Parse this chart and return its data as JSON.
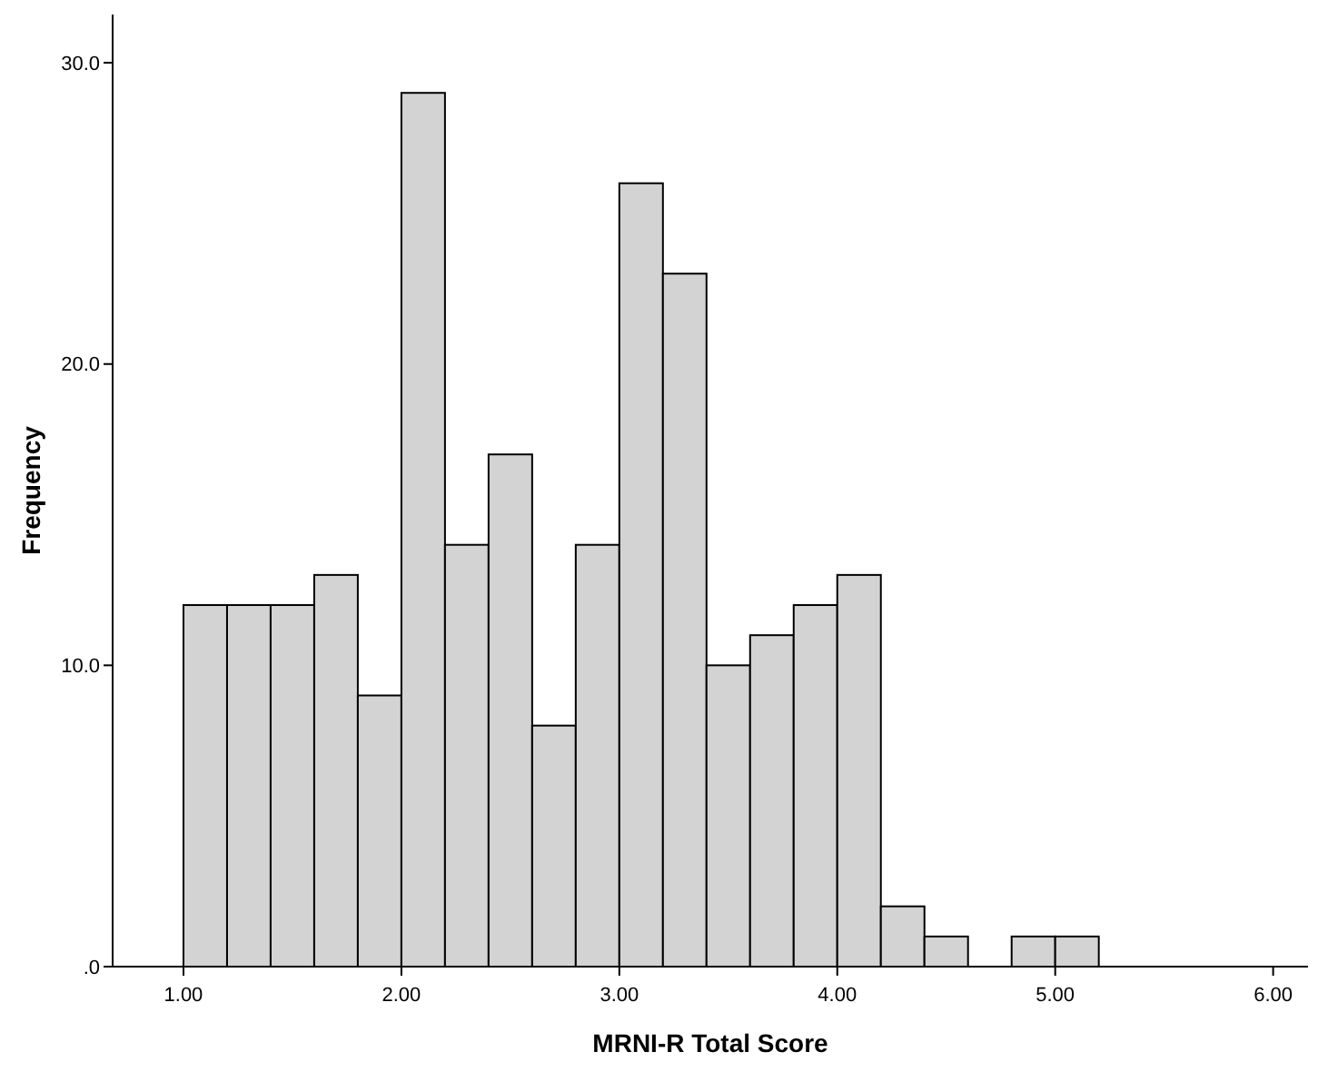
{
  "chart_data": {
    "type": "histogram",
    "xlabel": "MRNI-R Total Score",
    "ylabel": "Frequency",
    "bins": [
      1.0,
      1.2,
      1.4,
      1.6,
      1.8,
      2.0,
      2.2,
      2.4,
      2.6,
      2.8,
      3.0,
      3.2,
      3.4,
      3.6,
      3.8,
      4.0,
      4.2,
      4.4,
      4.6,
      4.8,
      5.0,
      5.2
    ],
    "values": [
      12,
      12,
      12,
      13,
      9,
      29,
      14,
      17,
      8,
      14,
      26,
      23,
      10,
      11,
      12,
      13,
      2,
      1,
      0,
      1,
      1
    ],
    "color": "#d3d3d3",
    "xlim": [
      0.675,
      6.16
    ],
    "ylim": [
      0,
      31.6
    ],
    "xticks": [
      {
        "value": 1,
        "label": "1.00"
      },
      {
        "value": 2,
        "label": "2.00"
      },
      {
        "value": 3,
        "label": "3.00"
      },
      {
        "value": 4,
        "label": "4.00"
      },
      {
        "value": 5,
        "label": "5.00"
      },
      {
        "value": 6,
        "label": "6.00"
      }
    ],
    "yticks": [
      {
        "value": 0,
        "label": ".0"
      },
      {
        "value": 10,
        "label": "10.0"
      },
      {
        "value": 20,
        "label": "20.0"
      },
      {
        "value": 30,
        "label": "30.0"
      }
    ],
    "grid": false
  }
}
